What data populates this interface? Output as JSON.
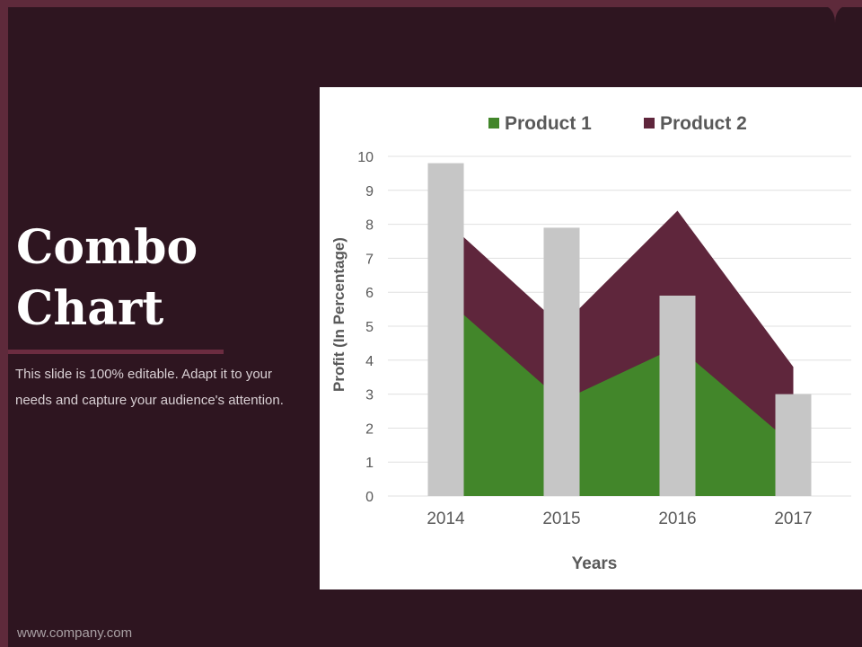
{
  "slide": {
    "title_line1": "Combo",
    "title_line2": "Chart",
    "body": "This slide is 100% editable. Adapt it to your needs and capture your audience's attention.",
    "footer": "www.company.com"
  },
  "colors": {
    "background": "#2e1520",
    "accent": "#5e2a3b",
    "product1": "#42862a",
    "product2": "#5f263c",
    "bars": "#c6c6c6"
  },
  "chart_data": {
    "type": "combo",
    "categories": [
      "2014",
      "2015",
      "2016",
      "2017"
    ],
    "series": [
      {
        "name": "Product 1",
        "kind": "area",
        "values": [
          5.8,
          2.8,
          4.4,
          1.5
        ]
      },
      {
        "name": "Product 2",
        "kind": "area",
        "values": [
          8.1,
          5.0,
          8.4,
          3.8
        ]
      },
      {
        "kind": "bar",
        "values": [
          9.8,
          7.9,
          5.9,
          3.0
        ]
      }
    ],
    "xlabel": "Years",
    "ylabel": "Profit  (In Percentage)",
    "ylim": [
      0,
      10
    ],
    "yticks": [
      "0",
      "1",
      "2",
      "3",
      "4",
      "5",
      "6",
      "7",
      "8",
      "9",
      "10"
    ],
    "grid": true,
    "legend_position": "top"
  }
}
